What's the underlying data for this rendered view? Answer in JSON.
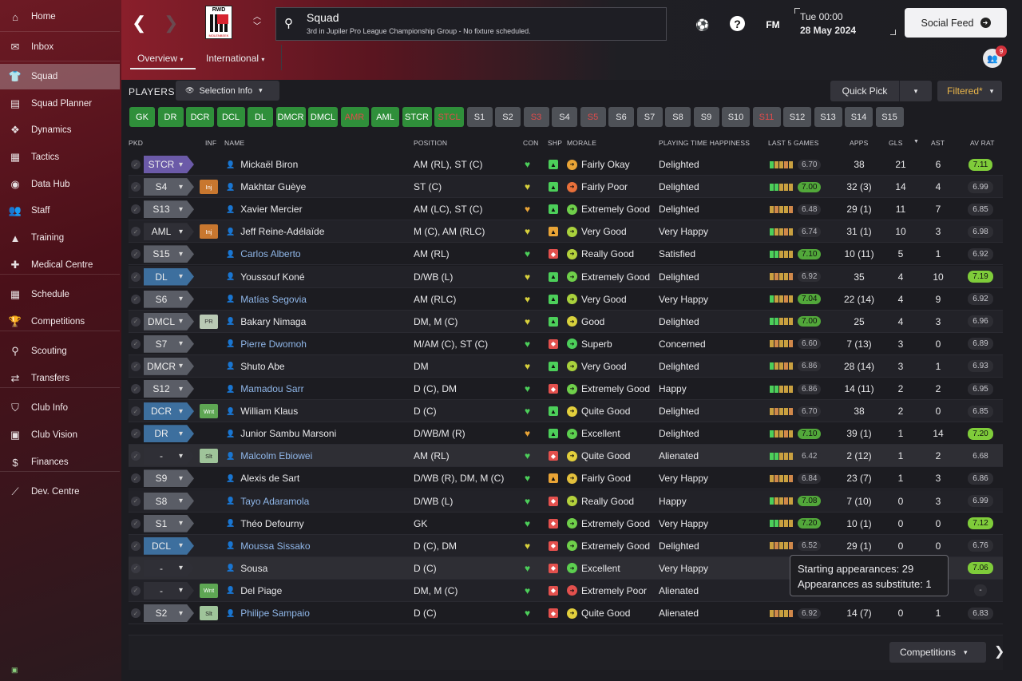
{
  "sidebar": {
    "items": [
      {
        "label": "Home",
        "icon": "home-icon",
        "glyph": "⌂"
      },
      {
        "label": "Inbox",
        "icon": "inbox-icon",
        "glyph": "✉"
      },
      {
        "label": "Squad",
        "icon": "shirt-icon",
        "glyph": "👕"
      },
      {
        "label": "Squad Planner",
        "icon": "clipboard-icon",
        "glyph": "▤"
      },
      {
        "label": "Dynamics",
        "icon": "people-icon",
        "glyph": "❖"
      },
      {
        "label": "Tactics",
        "icon": "board-icon",
        "glyph": "▦"
      },
      {
        "label": "Data Hub",
        "icon": "globe-icon",
        "glyph": "◉"
      },
      {
        "label": "Staff",
        "icon": "staff-icon",
        "glyph": "👥"
      },
      {
        "label": "Training",
        "icon": "cone-icon",
        "glyph": "▲"
      },
      {
        "label": "Medical Centre",
        "icon": "medical-icon",
        "glyph": "✚"
      },
      {
        "label": "Schedule",
        "icon": "calendar-icon",
        "glyph": "▦"
      },
      {
        "label": "Competitions",
        "icon": "trophy-icon",
        "glyph": "🏆"
      },
      {
        "label": "Scouting",
        "icon": "magnifier-icon",
        "glyph": "⚲"
      },
      {
        "label": "Transfers",
        "icon": "transfer-icon",
        "glyph": "⇄"
      },
      {
        "label": "Club Info",
        "icon": "shield-icon",
        "glyph": "⛉"
      },
      {
        "label": "Club Vision",
        "icon": "briefcase-icon",
        "glyph": "▣"
      },
      {
        "label": "Finances",
        "icon": "money-icon",
        "glyph": "$"
      },
      {
        "label": "Dev. Centre",
        "icon": "growth-icon",
        "glyph": "⟋"
      }
    ]
  },
  "header": {
    "title": "Squad",
    "subtitle": "3rd in Jupiler Pro League Championship Group - No fixture scheduled.",
    "club_short": "RWD",
    "club_text": "MOLENBEEK",
    "fm_label": "FM",
    "time": "Tue 00:00",
    "date": "28 May 2024",
    "social_feed": "Social Feed",
    "notification_count": "9",
    "tabs": [
      "Overview",
      "International"
    ]
  },
  "toolbar": {
    "players_label": "PLAYERS",
    "selection_info": "Selection Info",
    "quick_pick": "Quick Pick",
    "filtered": "Filtered*"
  },
  "position_filters": [
    {
      "label": "GK",
      "style": "green"
    },
    {
      "label": "DR",
      "style": "green"
    },
    {
      "label": "DCR",
      "style": "green"
    },
    {
      "label": "DCL",
      "style": "green"
    },
    {
      "label": "DL",
      "style": "green"
    },
    {
      "label": "DMCR",
      "style": "green"
    },
    {
      "label": "DMCL",
      "style": "green"
    },
    {
      "label": "AMR",
      "style": "green red"
    },
    {
      "label": "AML",
      "style": "green"
    },
    {
      "label": "STCR",
      "style": "green"
    },
    {
      "label": "STCL",
      "style": "green red"
    },
    {
      "label": "S1",
      "style": "grey"
    },
    {
      "label": "S2",
      "style": "grey"
    },
    {
      "label": "S3",
      "style": "grey red"
    },
    {
      "label": "S4",
      "style": "grey"
    },
    {
      "label": "S5",
      "style": "grey red"
    },
    {
      "label": "S6",
      "style": "grey"
    },
    {
      "label": "S7",
      "style": "grey"
    },
    {
      "label": "S8",
      "style": "grey"
    },
    {
      "label": "S9",
      "style": "grey"
    },
    {
      "label": "S10",
      "style": "grey"
    },
    {
      "label": "S11",
      "style": "grey red"
    },
    {
      "label": "S12",
      "style": "grey"
    },
    {
      "label": "S13",
      "style": "grey"
    },
    {
      "label": "S14",
      "style": "grey"
    },
    {
      "label": "S15",
      "style": "grey"
    }
  ],
  "columns": {
    "pkd": "PKD",
    "inf": "INF",
    "name": "NAME",
    "position": "POSITION",
    "con": "CON",
    "shp": "SHP",
    "morale": "MORALE",
    "pth": "PLAYING TIME HAPPINESS",
    "last5": "LAST 5 GAMES",
    "apps": "APPS",
    "gls": "GLS",
    "sort_glyph": "▼",
    "ast": "AST",
    "avrat": "AV RAT"
  },
  "players": [
    {
      "pkd": "STCR",
      "chip": "purple",
      "inf": "",
      "name": "Mickaël Biron",
      "link": false,
      "pos": "AM (RL), ST (C)",
      "con": "g",
      "shp": "g",
      "morale": "Fairly Okay",
      "mc": "#e9a436",
      "pth": "Delighted",
      "last5": "6.70",
      "l5hi": false,
      "apps": "38",
      "gls": "21",
      "ast": "6",
      "av": "7.11",
      "avhi": true
    },
    {
      "pkd": "S4",
      "chip": "grey",
      "inf": "Inj",
      "name": "Makhtar Guèye",
      "link": false,
      "pos": "ST (C)",
      "con": "y",
      "shp": "g",
      "morale": "Fairly Poor",
      "mc": "#e9703a",
      "pth": "Delighted",
      "last5": "7.00",
      "l5hi": true,
      "apps": "32 (3)",
      "gls": "14",
      "ast": "4",
      "av": "6.99",
      "avhi": false
    },
    {
      "pkd": "S13",
      "chip": "grey",
      "inf": "",
      "name": "Xavier Mercier",
      "link": false,
      "pos": "AM (LC), ST (C)",
      "con": "o",
      "shp": "g",
      "morale": "Extremely Good",
      "mc": "#6fcf4a",
      "pth": "Delighted",
      "last5": "6.48",
      "l5hi": false,
      "apps": "29 (1)",
      "gls": "11",
      "ast": "7",
      "av": "6.85",
      "avhi": false
    },
    {
      "pkd": "AML",
      "chip": "none",
      "inf": "Inj",
      "name": "Jeff Reine-Adélaïde",
      "link": false,
      "pos": "M (C), AM (RLC)",
      "con": "y",
      "shp": "y",
      "morale": "Very Good",
      "mc": "#a9d13c",
      "pth": "Very Happy",
      "last5": "6.74",
      "l5hi": false,
      "apps": "31 (1)",
      "gls": "10",
      "ast": "3",
      "av": "6.98",
      "avhi": false
    },
    {
      "pkd": "S15",
      "chip": "grey",
      "inf": "",
      "name": "Carlos Alberto",
      "link": true,
      "pos": "AM (RL)",
      "con": "g",
      "shp": "r",
      "morale": "Really Good",
      "mc": "#b4d13c",
      "pth": "Satisfied",
      "last5": "7.10",
      "l5hi": true,
      "apps": "10 (11)",
      "gls": "5",
      "ast": "1",
      "av": "6.92",
      "avhi": false
    },
    {
      "pkd": "DL",
      "chip": "blue",
      "inf": "",
      "name": "Youssouf Koné",
      "link": false,
      "pos": "D/WB (L)",
      "con": "y",
      "shp": "g",
      "morale": "Extremely Good",
      "mc": "#6fcf4a",
      "pth": "Delighted",
      "last5": "6.92",
      "l5hi": false,
      "apps": "35",
      "gls": "4",
      "ast": "10",
      "av": "7.19",
      "avhi": true
    },
    {
      "pkd": "S6",
      "chip": "grey",
      "inf": "",
      "name": "Matías Segovia",
      "link": true,
      "pos": "AM (RLC)",
      "con": "y",
      "shp": "g",
      "morale": "Very Good",
      "mc": "#a9d13c",
      "pth": "Very Happy",
      "last5": "7.04",
      "l5hi": true,
      "apps": "22 (14)",
      "gls": "4",
      "ast": "9",
      "av": "6.92",
      "avhi": false
    },
    {
      "pkd": "DMCL",
      "chip": "grey",
      "inf": "PR",
      "name": "Bakary Nimaga",
      "link": false,
      "pos": "DM, M (C)",
      "con": "y",
      "shp": "g",
      "morale": "Good",
      "mc": "#d8d13c",
      "pth": "Delighted",
      "last5": "7.00",
      "l5hi": true,
      "apps": "25",
      "gls": "4",
      "ast": "3",
      "av": "6.96",
      "avhi": false
    },
    {
      "pkd": "S7",
      "chip": "grey",
      "inf": "",
      "name": "Pierre Dwomoh",
      "link": true,
      "pos": "M/AM (C), ST (C)",
      "con": "g",
      "shp": "r",
      "morale": "Superb",
      "mc": "#4ccf5a",
      "pth": "Concerned",
      "last5": "6.60",
      "l5hi": false,
      "apps": "7 (13)",
      "gls": "3",
      "ast": "0",
      "av": "6.89",
      "avhi": false
    },
    {
      "pkd": "DMCR",
      "chip": "grey",
      "inf": "",
      "name": "Shuto Abe",
      "link": false,
      "pos": "DM",
      "con": "y",
      "shp": "g",
      "morale": "Very Good",
      "mc": "#a9d13c",
      "pth": "Delighted",
      "last5": "6.86",
      "l5hi": false,
      "apps": "28 (14)",
      "gls": "3",
      "ast": "1",
      "av": "6.93",
      "avhi": false
    },
    {
      "pkd": "S12",
      "chip": "grey",
      "inf": "",
      "name": "Mamadou Sarr",
      "link": true,
      "pos": "D (C), DM",
      "con": "g",
      "shp": "r",
      "morale": "Extremely Good",
      "mc": "#6fcf4a",
      "pth": "Happy",
      "last5": "6.86",
      "l5hi": false,
      "apps": "14 (11)",
      "gls": "2",
      "ast": "2",
      "av": "6.95",
      "avhi": false
    },
    {
      "pkd": "DCR",
      "chip": "blue",
      "inf": "Wnt",
      "name": "William Klaus",
      "link": false,
      "pos": "D (C)",
      "con": "g",
      "shp": "g",
      "morale": "Quite Good",
      "mc": "#e3cf3c",
      "pth": "Delighted",
      "last5": "6.70",
      "l5hi": false,
      "apps": "38",
      "gls": "2",
      "ast": "0",
      "av": "6.85",
      "avhi": false
    },
    {
      "pkd": "DR",
      "chip": "blue",
      "inf": "",
      "name": "Junior Sambu Marsoni",
      "link": false,
      "pos": "D/WB/M (R)",
      "con": "o",
      "shp": "g",
      "morale": "Excellent",
      "mc": "#5ccf4f",
      "pth": "Delighted",
      "last5": "7.10",
      "l5hi": true,
      "apps": "39 (1)",
      "gls": "1",
      "ast": "14",
      "av": "7.20",
      "avhi": true
    },
    {
      "pkd": "-",
      "chip": "none",
      "inf": "Slt",
      "name": "Malcolm Ebiowei",
      "link": true,
      "pos": "AM (RL)",
      "con": "g",
      "shp": "r",
      "morale": "Quite Good",
      "mc": "#e3cf3c",
      "pth": "Alienated",
      "last5": "6.42",
      "l5hi": false,
      "apps": "2 (12)",
      "gls": "1",
      "ast": "2",
      "av": "6.68",
      "avhi": false
    },
    {
      "pkd": "S9",
      "chip": "grey",
      "inf": "",
      "name": "Alexis de Sart",
      "link": false,
      "pos": "D/WB (R), DM, M (C)",
      "con": "g",
      "shp": "o",
      "morale": "Fairly Good",
      "mc": "#e3c03c",
      "pth": "Very Happy",
      "last5": "6.84",
      "l5hi": false,
      "apps": "23 (7)",
      "gls": "1",
      "ast": "3",
      "av": "6.86",
      "avhi": false
    },
    {
      "pkd": "S8",
      "chip": "grey",
      "inf": "",
      "name": "Tayo Adaramola",
      "link": true,
      "pos": "D/WB (L)",
      "con": "g",
      "shp": "r",
      "morale": "Really Good",
      "mc": "#b4d13c",
      "pth": "Happy",
      "last5": "7.08",
      "l5hi": true,
      "apps": "7 (10)",
      "gls": "0",
      "ast": "3",
      "av": "6.99",
      "avhi": false
    },
    {
      "pkd": "S1",
      "chip": "grey",
      "inf": "",
      "name": "Théo Defourny",
      "link": false,
      "pos": "GK",
      "con": "g",
      "shp": "r",
      "morale": "Extremely Good",
      "mc": "#6fcf4a",
      "pth": "Very Happy",
      "last5": "7.20",
      "l5hi": true,
      "apps": "10 (1)",
      "gls": "0",
      "ast": "0",
      "av": "7.12",
      "avhi": true
    },
    {
      "pkd": "DCL",
      "chip": "blue",
      "inf": "",
      "name": "Moussa Sissako",
      "link": true,
      "pos": "D (C), DM",
      "con": "y",
      "shp": "r",
      "morale": "Extremely Good",
      "mc": "#6fcf4a",
      "pth": "Delighted",
      "last5": "6.52",
      "l5hi": false,
      "apps": "29 (1)",
      "gls": "0",
      "ast": "0",
      "av": "6.76",
      "avhi": false
    },
    {
      "pkd": "-",
      "chip": "none",
      "inf": "",
      "name": "Sousa",
      "link": false,
      "pos": "D (C)",
      "con": "g",
      "shp": "r",
      "morale": "Excellent",
      "mc": "#5ccf4f",
      "pth": "Very Happy",
      "last5": "",
      "l5hi": false,
      "apps": "",
      "gls": "",
      "ast": "",
      "av": "7.06",
      "avhi": true
    },
    {
      "pkd": "-",
      "chip": "none",
      "inf": "Wnt",
      "name": "Del Piage",
      "link": false,
      "pos": "DM, M (C)",
      "con": "g",
      "shp": "r",
      "morale": "Extremely Poor",
      "mc": "#e3504d",
      "pth": "Alienated",
      "last5": "",
      "l5hi": false,
      "apps": "",
      "gls": "",
      "ast": "",
      "av": "-",
      "avhi": false
    },
    {
      "pkd": "S2",
      "chip": "grey",
      "inf": "Slt",
      "name": "Philipe Sampaio",
      "link": true,
      "pos": "D (C)",
      "con": "g",
      "shp": "r",
      "morale": "Quite Good",
      "mc": "#e3cf3c",
      "pth": "Alienated",
      "last5": "6.92",
      "l5hi": false,
      "apps": "14 (7)",
      "gls": "0",
      "ast": "1",
      "av": "6.83",
      "avhi": false
    }
  ],
  "tooltip": {
    "line1": "Starting appearances: 29",
    "line2": "Appearances as substitute: 1"
  },
  "footer": {
    "competitions": "Competitions"
  }
}
